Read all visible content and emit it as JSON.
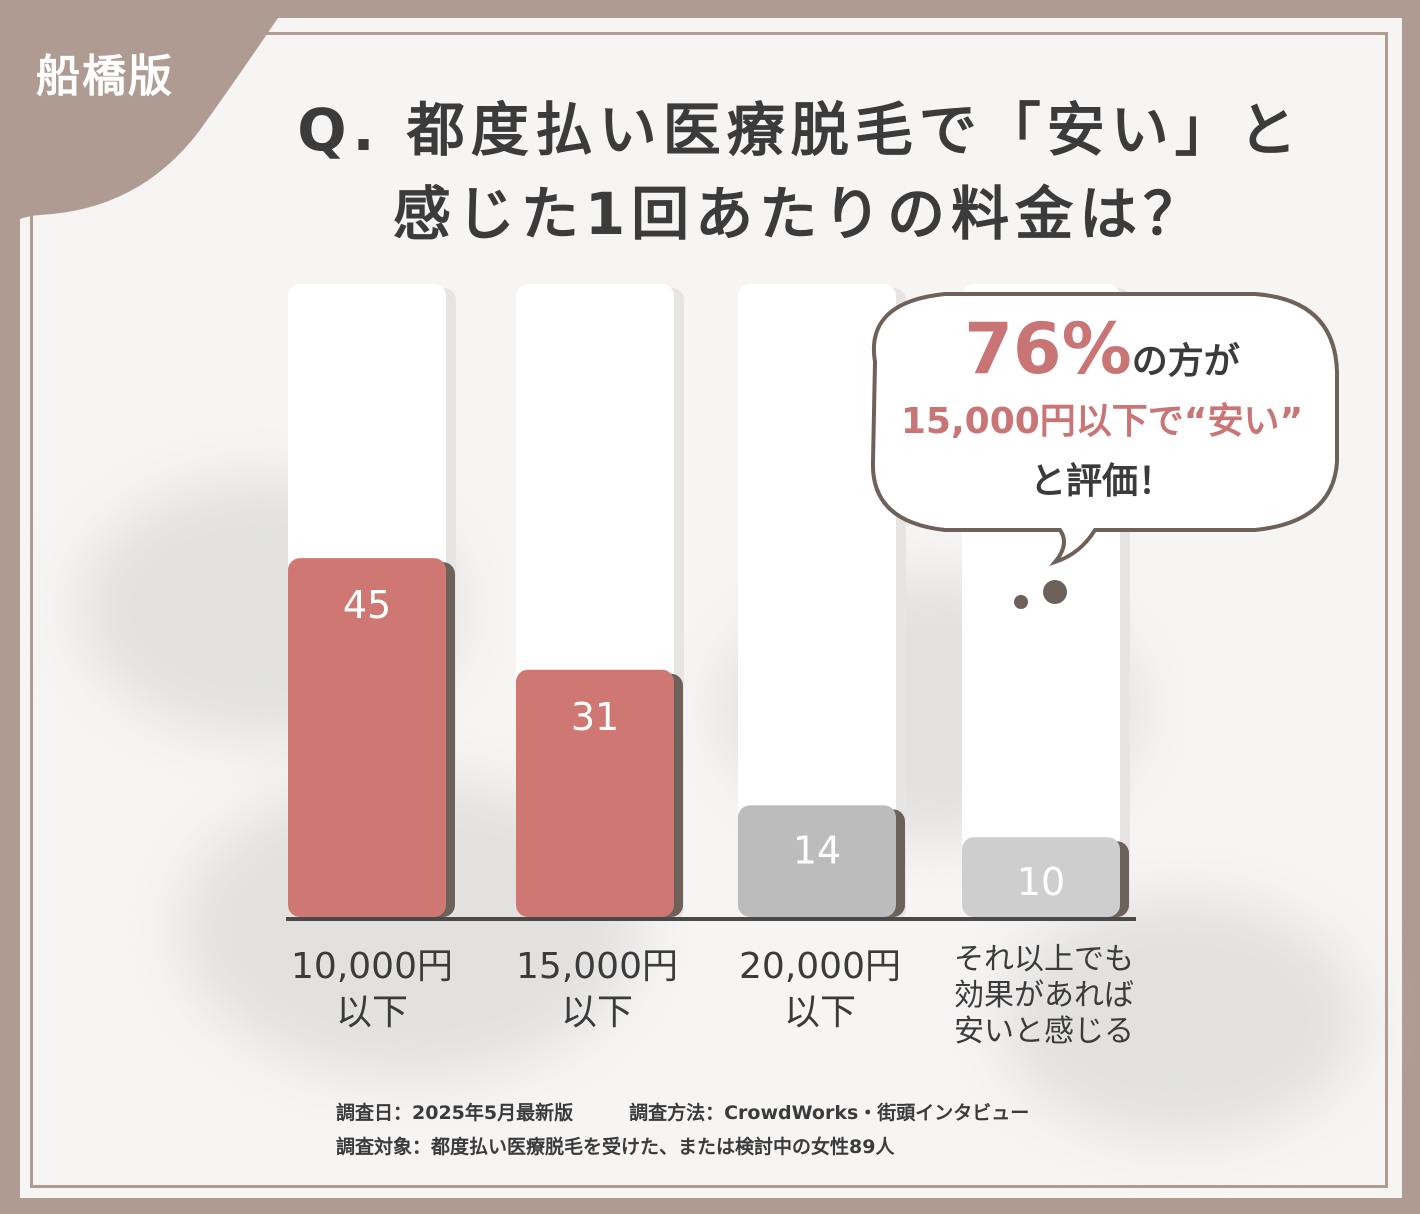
{
  "corner_tag": "船橋版",
  "title_line1": "Q. 都度払い医療脱毛で「安い」と",
  "title_line2": "感じた1回あたりの料金は？",
  "callout": {
    "percent": "76%",
    "line1_rest": "の方が",
    "line2": "15,000円以下で“安い”",
    "line3": "と評価！"
  },
  "footer": {
    "date": "調査日：2025年5月最新版",
    "method": "調査方法：CrowdWorks・街頭インタビュー",
    "target": "調査対象：都度払い医療脱毛を受けた、または検討中の女性89人"
  },
  "colors": {
    "highlight_bar": "#cf7772",
    "gray_bar_1": "#bdbcbc",
    "gray_bar_2": "#cfcece",
    "frame": "#b09b93",
    "accent_text": "#c97576"
  },
  "chart_data": {
    "type": "bar",
    "categories": [
      "10,000円\n以下",
      "15,000円\n以下",
      "20,000円\n以下",
      "それ以上でも\n効果があれば\n安いと感じる"
    ],
    "values": [
      45,
      31,
      14,
      10
    ],
    "ylim": [
      0,
      100
    ],
    "title": "Q. 都度払い医療脱毛で「安い」と感じた1回あたりの料金は？",
    "xlabel": "",
    "ylabel": "",
    "highlighted": [
      true,
      true,
      false,
      false
    ]
  }
}
